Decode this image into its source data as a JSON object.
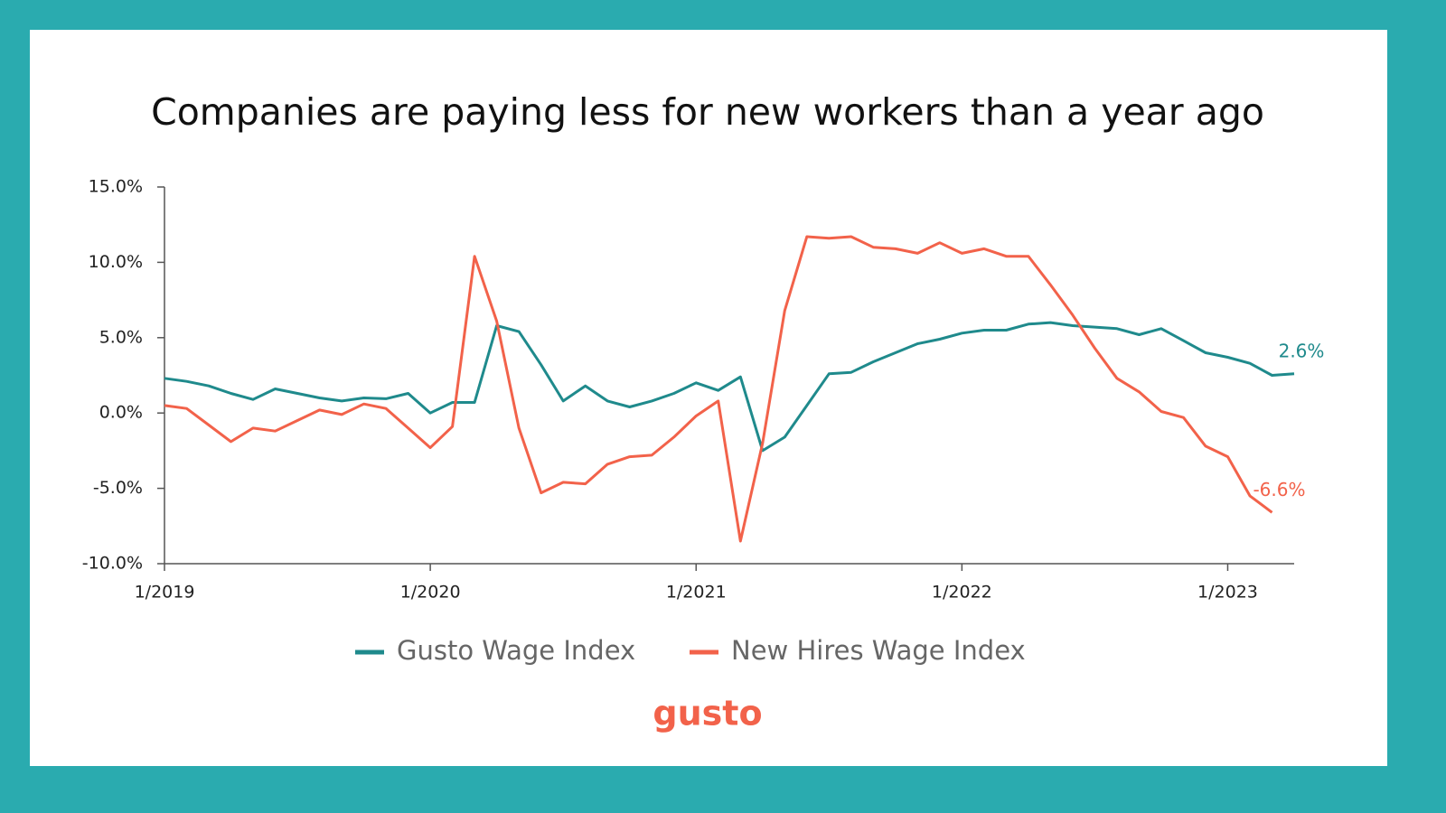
{
  "chart_data": {
    "type": "line",
    "title": "Companies are paying less for new workers than a year ago",
    "x": [
      "2019-01",
      "2019-02",
      "2019-03",
      "2019-04",
      "2019-05",
      "2019-06",
      "2019-07",
      "2019-08",
      "2019-09",
      "2019-10",
      "2019-11",
      "2019-12",
      "2020-01",
      "2020-02",
      "2020-03",
      "2020-04",
      "2020-05",
      "2020-06",
      "2020-07",
      "2020-08",
      "2020-09",
      "2020-10",
      "2020-11",
      "2020-12",
      "2021-01",
      "2021-02",
      "2021-03",
      "2021-04",
      "2021-05",
      "2021-06",
      "2021-07",
      "2021-08",
      "2021-09",
      "2021-10",
      "2021-11",
      "2021-12",
      "2022-01",
      "2022-02",
      "2022-03",
      "2022-04",
      "2022-05",
      "2022-06",
      "2022-07",
      "2022-08",
      "2022-09",
      "2022-10",
      "2022-11",
      "2022-12",
      "2023-01",
      "2023-02",
      "2023-03",
      "2023-04"
    ],
    "series": [
      {
        "name": "Gusto Wage Index",
        "color": "#1f8a8c",
        "values": [
          2.3,
          2.1,
          1.8,
          1.3,
          0.9,
          1.6,
          1.3,
          1.0,
          0.8,
          1.0,
          0.95,
          1.3,
          0.0,
          0.7,
          0.7,
          5.8,
          5.4,
          3.2,
          0.8,
          1.8,
          0.8,
          0.4,
          0.8,
          1.3,
          2.0,
          1.5,
          2.4,
          -2.5,
          -1.6,
          0.5,
          2.6,
          2.7,
          3.4,
          4.0,
          4.6,
          4.9,
          5.3,
          5.5,
          5.5,
          5.9,
          6.0,
          5.8,
          5.7,
          5.6,
          5.2,
          5.6,
          4.8,
          4.0,
          3.7,
          3.3,
          2.5,
          2.6
        ],
        "value_labels": [
          null,
          null,
          null,
          null,
          null,
          null,
          null,
          null,
          null,
          null,
          null,
          null,
          null,
          null,
          null,
          null,
          null,
          null,
          null,
          null,
          null,
          null,
          null,
          null,
          null,
          null,
          null,
          null,
          null,
          null,
          null,
          null,
          null,
          null,
          null,
          null,
          null,
          null,
          null,
          null,
          null,
          null,
          null,
          null,
          null,
          null,
          null,
          null,
          null,
          null,
          null,
          "2.6%"
        ]
      },
      {
        "name": "New Hires Wage Index",
        "color": "#f2624a",
        "values": [
          0.5,
          0.3,
          -0.8,
          -1.9,
          -1.0,
          -1.2,
          -0.5,
          0.2,
          -0.1,
          0.6,
          0.3,
          -1.0,
          -2.3,
          -0.9,
          10.4,
          6.1,
          -1.0,
          -5.3,
          -4.6,
          -4.7,
          -3.4,
          -2.9,
          -2.8,
          -1.6,
          -0.2,
          0.8,
          -8.5,
          -2.0,
          6.8,
          11.7,
          11.6,
          11.7,
          11.0,
          10.9,
          10.6,
          11.3,
          10.6,
          10.9,
          10.4,
          10.4,
          8.5,
          6.5,
          4.3,
          2.3,
          1.4,
          0.1,
          -0.3,
          -2.2,
          -2.9,
          -5.5,
          -6.6,
          null
        ],
        "value_labels": [
          null,
          null,
          null,
          null,
          null,
          null,
          null,
          null,
          null,
          null,
          null,
          null,
          null,
          null,
          null,
          null,
          null,
          null,
          null,
          null,
          null,
          null,
          null,
          null,
          null,
          null,
          null,
          null,
          null,
          null,
          null,
          null,
          null,
          null,
          null,
          null,
          null,
          null,
          null,
          null,
          null,
          null,
          null,
          null,
          null,
          null,
          null,
          null,
          null,
          null,
          "-6.6%",
          null
        ]
      }
    ],
    "xlim": [
      "2019-01",
      "2023-04"
    ],
    "xticks": [
      {
        "value": "2019-01",
        "label": "1/2019"
      },
      {
        "value": "2020-01",
        "label": "1/2020"
      },
      {
        "value": "2021-01",
        "label": "1/2021"
      },
      {
        "value": "2022-01",
        "label": "1/2022"
      },
      {
        "value": "2023-01",
        "label": "1/2023"
      }
    ],
    "ylim": [
      -10,
      15
    ],
    "yticks": [
      {
        "value": -10,
        "label": "-10.0%"
      },
      {
        "value": -5,
        "label": "-5.0%"
      },
      {
        "value": 0,
        "label": "0.0%"
      },
      {
        "value": 5,
        "label": "5.0%"
      },
      {
        "value": 10,
        "label": "10.0%"
      },
      {
        "value": 15,
        "label": "15.0%"
      }
    ],
    "grid": false,
    "legend": "bottom"
  },
  "brand": "gusto"
}
